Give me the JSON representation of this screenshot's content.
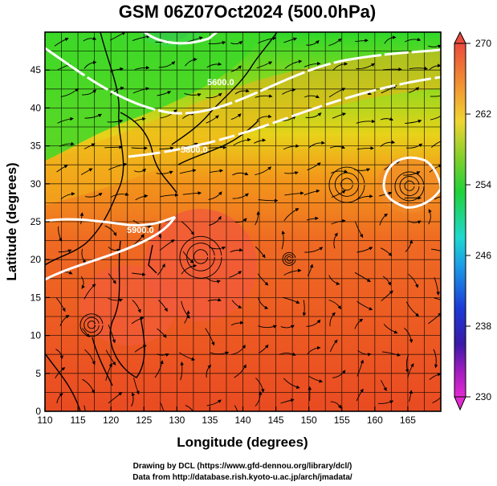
{
  "chart_data": {
    "type": "heatmap",
    "title": "GSM 06Z07Oct2024 (500.0hPa)",
    "xlabel": "Longitude (degrees)",
    "ylabel": "Latitude  (degrees)",
    "xlim": [
      110,
      170
    ],
    "ylim": [
      0,
      50
    ],
    "x_ticks": [
      "110",
      "115",
      "120",
      "125",
      "130",
      "135",
      "140",
      "145",
      "150",
      "155",
      "160",
      "165"
    ],
    "y_ticks": [
      "0",
      "5",
      "10",
      "15",
      "20",
      "25",
      "30",
      "35",
      "40",
      "45"
    ],
    "colorbar": {
      "ticks": [
        "270",
        "262",
        "254",
        "246",
        "238",
        "230"
      ],
      "values": [
        270,
        262,
        254,
        246,
        238,
        230
      ],
      "range": [
        230,
        270
      ]
    },
    "contour_labels": [
      "5600.0",
      "5800.0",
      "5900.0"
    ],
    "overlays": [
      "streamlines",
      "coastlines",
      "geopotential height contours"
    ]
  },
  "credits": {
    "line1": "Drawing by DCL (https://www.gfd-dennou.org/library/dcl/)",
    "line2": "Data from http://database.rish.kyoto-u.ac.jp/arch/jmadata/"
  }
}
